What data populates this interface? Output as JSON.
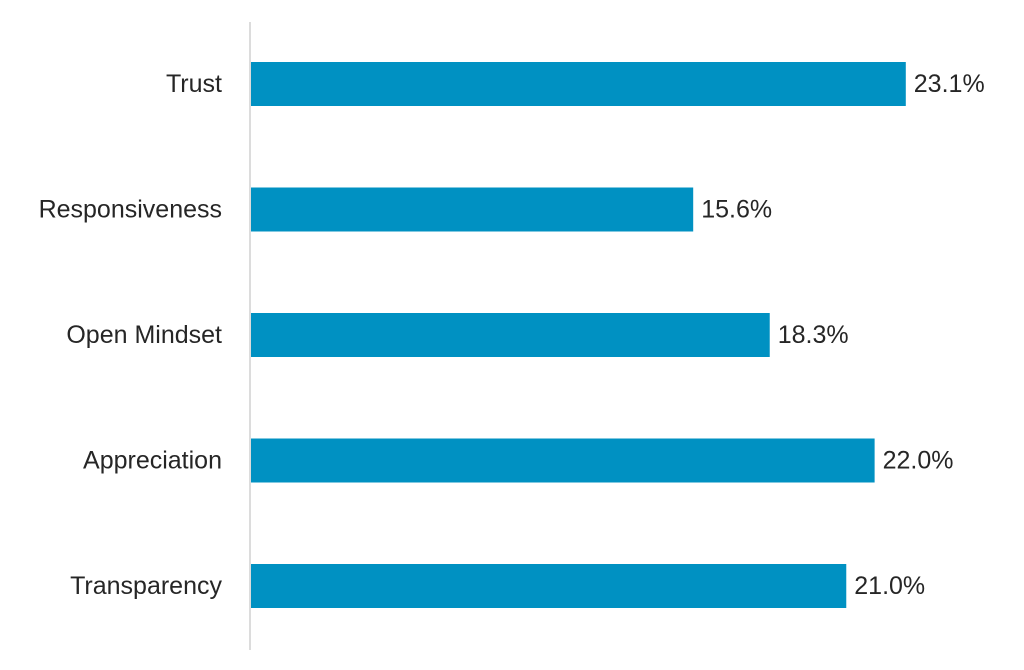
{
  "chart_data": {
    "type": "bar",
    "orientation": "horizontal",
    "categories": [
      "Trust",
      "Responsiveness",
      "Open Mindset",
      "Appreciation",
      "Transparency"
    ],
    "values": [
      23.1,
      15.6,
      18.3,
      22.0,
      21.0
    ],
    "value_labels": [
      "23.1%",
      "15.6%",
      "18.3%",
      "22.0%",
      "21.0%"
    ],
    "unit": "%",
    "xlim": [
      0,
      26
    ],
    "bar_color": "#0091c2",
    "axis_color": "#d0d0d0",
    "text_color": "#262626",
    "grid": false,
    "legend": "none"
  }
}
